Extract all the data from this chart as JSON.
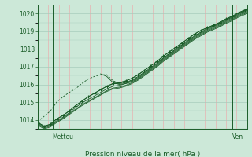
{
  "title": "Pression niveau de la mer( hPa )",
  "xlabel_left": "Metteu",
  "xlabel_right": "Ven",
  "ylim": [
    1013.5,
    1020.5
  ],
  "xlim": [
    0,
    100
  ],
  "yticks": [
    1014,
    1015,
    1016,
    1017,
    1018,
    1019,
    1020
  ],
  "bg_color": "#cce8d8",
  "grid_color_h": "#a8ccbc",
  "grid_color_v": "#e8b0b0",
  "line_color": "#1a5c28",
  "vline_left_x": 7,
  "vline_right_x": 93,
  "lines": [
    [
      0,
      1013.85,
      3,
      1013.65,
      6,
      1013.75,
      9,
      1014.05,
      12,
      1014.25,
      15,
      1014.5,
      18,
      1014.8,
      21,
      1015.05,
      24,
      1015.3,
      27,
      1015.5,
      30,
      1015.7,
      33,
      1015.9,
      36,
      1016.05,
      39,
      1016.1,
      42,
      1016.2,
      45,
      1016.35,
      48,
      1016.55,
      51,
      1016.8,
      54,
      1017.05,
      57,
      1017.3,
      60,
      1017.6,
      63,
      1017.85,
      66,
      1018.1,
      69,
      1018.35,
      72,
      1018.6,
      75,
      1018.85,
      78,
      1019.05,
      81,
      1019.2,
      84,
      1019.35,
      87,
      1019.5,
      90,
      1019.7,
      93,
      1019.85,
      96,
      1020.05,
      99,
      1020.2,
      100,
      1020.25
    ],
    [
      0,
      1013.8,
      3,
      1013.6,
      6,
      1013.7,
      9,
      1013.95,
      12,
      1014.15,
      15,
      1014.4,
      18,
      1014.7,
      21,
      1014.95,
      24,
      1015.15,
      27,
      1015.35,
      30,
      1015.55,
      33,
      1015.75,
      36,
      1015.9,
      39,
      1015.95,
      42,
      1016.05,
      45,
      1016.2,
      48,
      1016.4,
      51,
      1016.65,
      54,
      1016.9,
      57,
      1017.15,
      60,
      1017.45,
      63,
      1017.7,
      66,
      1017.95,
      69,
      1018.2,
      72,
      1018.45,
      75,
      1018.7,
      78,
      1018.9,
      81,
      1019.1,
      84,
      1019.25,
      87,
      1019.4,
      90,
      1019.6,
      93,
      1019.75,
      96,
      1019.95,
      99,
      1020.1,
      100,
      1020.15
    ],
    [
      0,
      1013.75,
      3,
      1013.55,
      6,
      1013.65,
      9,
      1013.9,
      12,
      1014.1,
      15,
      1014.35,
      18,
      1014.6,
      21,
      1014.85,
      24,
      1015.05,
      27,
      1015.25,
      30,
      1015.45,
      33,
      1015.65,
      36,
      1015.8,
      39,
      1015.85,
      42,
      1015.95,
      45,
      1016.1,
      48,
      1016.3,
      51,
      1016.55,
      54,
      1016.8,
      57,
      1017.05,
      60,
      1017.35,
      63,
      1017.6,
      66,
      1017.85,
      69,
      1018.1,
      72,
      1018.35,
      75,
      1018.6,
      78,
      1018.8,
      81,
      1019.0,
      84,
      1019.15,
      87,
      1019.3,
      90,
      1019.5,
      93,
      1019.65,
      96,
      1019.85,
      99,
      1020.0,
      100,
      1020.05
    ],
    [
      0,
      1013.7,
      3,
      1013.5,
      6,
      1013.6,
      9,
      1013.85,
      12,
      1014.05,
      15,
      1014.3,
      18,
      1014.55,
      21,
      1014.8,
      24,
      1015.0,
      27,
      1015.2,
      30,
      1015.4,
      33,
      1015.6,
      36,
      1015.75,
      39,
      1015.8,
      42,
      1015.9,
      45,
      1016.05,
      48,
      1016.25,
      51,
      1016.5,
      54,
      1016.75,
      57,
      1017.0,
      60,
      1017.3,
      63,
      1017.55,
      66,
      1017.8,
      69,
      1018.05,
      72,
      1018.3,
      75,
      1018.55,
      78,
      1018.75,
      81,
      1018.95,
      84,
      1019.1,
      87,
      1019.25,
      90,
      1019.45,
      93,
      1019.6,
      96,
      1019.8,
      99,
      1019.95,
      100,
      1020.0
    ],
    [
      36,
      1016.05,
      39,
      1016.05,
      42,
      1016.1,
      45,
      1016.25,
      48,
      1016.45,
      51,
      1016.7,
      54,
      1016.95,
      57,
      1017.2,
      60,
      1017.5,
      63,
      1017.75,
      66,
      1018.0,
      69,
      1018.25,
      72,
      1018.5,
      75,
      1018.75,
      78,
      1018.95,
      81,
      1019.15,
      84,
      1019.3,
      87,
      1019.45,
      90,
      1019.65,
      93,
      1019.8,
      96,
      1020.0,
      99,
      1020.15,
      100,
      1020.2
    ],
    [
      30,
      1016.6,
      33,
      1016.45,
      36,
      1016.1,
      39,
      1016.0,
      42,
      1016.05,
      45,
      1016.15,
      48,
      1016.35,
      51,
      1016.6,
      54,
      1016.85,
      57,
      1017.1,
      60,
      1017.4,
      63,
      1017.65,
      66,
      1017.9,
      69,
      1018.15,
      72,
      1018.4,
      75,
      1018.65,
      78,
      1018.85,
      81,
      1019.05,
      84,
      1019.2,
      87,
      1019.35,
      90,
      1019.55,
      93,
      1019.7,
      96,
      1019.9,
      99,
      1020.05,
      100,
      1020.1
    ]
  ],
  "marker_line": [
    0,
    1013.85,
    3,
    1013.65,
    6,
    1013.75,
    9,
    1014.05,
    12,
    1014.25,
    15,
    1014.5,
    18,
    1014.8,
    21,
    1015.05,
    24,
    1015.3,
    27,
    1015.5,
    30,
    1015.7,
    33,
    1015.9,
    36,
    1016.05,
    39,
    1016.1,
    42,
    1016.2,
    45,
    1016.35,
    48,
    1016.55,
    51,
    1016.8,
    54,
    1017.05,
    57,
    1017.3,
    60,
    1017.6,
    63,
    1017.85,
    66,
    1018.1,
    69,
    1018.35,
    72,
    1018.6,
    75,
    1018.85,
    78,
    1019.05,
    81,
    1019.2,
    84,
    1019.35,
    87,
    1019.5,
    90,
    1019.7,
    93,
    1019.85,
    96,
    1020.05,
    99,
    1020.2,
    100,
    1020.25
  ],
  "dashed_line": [
    0,
    1013.9,
    6,
    1014.5,
    9,
    1015.0,
    12,
    1015.3,
    15,
    1015.55,
    18,
    1015.75,
    21,
    1016.05,
    24,
    1016.3,
    27,
    1016.45,
    30,
    1016.55,
    33,
    1016.55,
    36,
    1016.2,
    39,
    1016.1,
    42,
    1016.1,
    45,
    1016.25,
    48,
    1016.45,
    51,
    1016.7,
    54,
    1016.95,
    57,
    1017.2,
    60,
    1017.5,
    63,
    1017.75,
    66,
    1018.0,
    69,
    1018.25,
    72,
    1018.5,
    75,
    1018.75,
    78,
    1018.95,
    81,
    1019.15,
    84,
    1019.3,
    87,
    1019.45,
    90,
    1019.65,
    93,
    1019.8,
    96,
    1020.0,
    99,
    1020.15,
    100,
    1020.2
  ]
}
